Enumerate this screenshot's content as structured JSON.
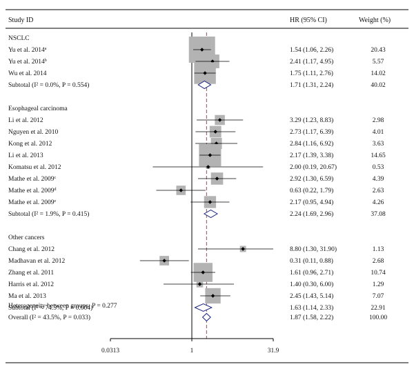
{
  "headers": {
    "study": "Study ID",
    "hr": "HR (95% CI)",
    "weight": "Weight (%)"
  },
  "axis_tick_labels": [
    "0.0313",
    "1",
    "31.9"
  ],
  "chart_data": {
    "type": "forest",
    "x_scale": "log",
    "x_range": [
      0.0313,
      31.9
    ],
    "reference_line": 1,
    "overall_line": 1.87,
    "groups": [
      {
        "name": "NSCLC",
        "studies": [
          {
            "label": "Yu et al. 2014",
            "sup": "a",
            "hr": 1.54,
            "lo": 1.06,
            "hi": 2.26,
            "ci_text": "1.54 (1.06, 2.26)",
            "weight": "20.43"
          },
          {
            "label": "Yu et al. 2014",
            "sup": "b",
            "hr": 2.41,
            "lo": 1.17,
            "hi": 4.95,
            "ci_text": "2.41 (1.17, 4.95)",
            "weight": "5.57"
          },
          {
            "label": "Wu et al. 2014",
            "sup": "",
            "hr": 1.75,
            "lo": 1.11,
            "hi": 2.76,
            "ci_text": "1.75 (1.11, 2.76)",
            "weight": "14.02"
          }
        ],
        "subtotal": {
          "label": "Subtotal (I² = 0.0%, P = 0.554)",
          "hr": 1.71,
          "lo": 1.31,
          "hi": 2.24,
          "ci_text": "1.71 (1.31, 2.24)",
          "weight": "40.02"
        }
      },
      {
        "name": "Esophageal carcinoma",
        "studies": [
          {
            "label": "Li et al. 2012",
            "sup": "",
            "hr": 3.29,
            "lo": 1.23,
            "hi": 8.83,
            "ci_text": "3.29 (1.23, 8.83)",
            "weight": "2.98"
          },
          {
            "label": "Nguyen et al. 2010",
            "sup": "",
            "hr": 2.73,
            "lo": 1.17,
            "hi": 6.39,
            "ci_text": "2.73 (1.17, 6.39)",
            "weight": "4.01"
          },
          {
            "label": "Kong et al. 2012",
            "sup": "",
            "hr": 2.84,
            "lo": 1.16,
            "hi": 6.92,
            "ci_text": "2.84 (1.16, 6.92)",
            "weight": "3.63"
          },
          {
            "label": "Li et al. 2013",
            "sup": "",
            "hr": 2.17,
            "lo": 1.39,
            "hi": 3.38,
            "ci_text": "2.17 (1.39, 3.38)",
            "weight": "14.65"
          },
          {
            "label": "Komatsu et al. 2012",
            "sup": "",
            "hr": 2.0,
            "lo": 0.19,
            "hi": 20.67,
            "ci_text": "2.00 (0.19, 20.67)",
            "weight": "0.53"
          },
          {
            "label": "Mathe et al. 2009",
            "sup": "c",
            "hr": 2.92,
            "lo": 1.3,
            "hi": 6.59,
            "ci_text": "2.92 (1.30, 6.59)",
            "weight": "4.39"
          },
          {
            "label": "Mathe et al. 2009",
            "sup": "d",
            "hr": 0.63,
            "lo": 0.22,
            "hi": 1.79,
            "ci_text": "0.63 (0.22, 1.79)",
            "weight": "2.63"
          },
          {
            "label": "Mathe et al. 2009",
            "sup": "e",
            "hr": 2.17,
            "lo": 0.95,
            "hi": 4.94,
            "ci_text": "2.17 (0.95, 4.94)",
            "weight": "4.26"
          }
        ],
        "subtotal": {
          "label": "Subtotal (I² = 1.9%, P = 0.415)",
          "hr": 2.24,
          "lo": 1.69,
          "hi": 2.96,
          "ci_text": "2.24 (1.69, 2.96)",
          "weight": "37.08"
        }
      },
      {
        "name": "Other cancers",
        "studies": [
          {
            "label": "Chang et al. 2012",
            "sup": "",
            "hr": 8.8,
            "lo": 1.3,
            "hi": 31.9,
            "ci_text": "8.80 (1.30, 31.90)",
            "weight": "1.13"
          },
          {
            "label": "Madhavan et al. 2012",
            "sup": "",
            "hr": 0.31,
            "lo": 0.11,
            "hi": 0.88,
            "ci_text": "0.31 (0.11, 0.88)",
            "weight": "2.68"
          },
          {
            "label": "Zhang et al. 2011",
            "sup": "",
            "hr": 1.61,
            "lo": 0.96,
            "hi": 2.71,
            "ci_text": "1.61 (0.96, 2.71)",
            "weight": "10.74"
          },
          {
            "label": "Harris et al. 2012",
            "sup": "",
            "hr": 1.4,
            "lo": 0.3,
            "hi": 6.0,
            "ci_text": "1.40 (0.30, 6.00)",
            "weight": "1.29"
          },
          {
            "label": "Ma et al. 2013",
            "sup": "",
            "hr": 2.45,
            "lo": 1.43,
            "hi": 5.14,
            "ci_text": "2.45 (1.43, 5.14)",
            "weight": "7.07"
          }
        ],
        "subtotal": {
          "label": "Subtotal (I² = 74.5%, P = 0.004)",
          "hr": 1.63,
          "lo": 1.14,
          "hi": 2.33,
          "ci_text": "1.63 (1.14, 2.33)",
          "weight": "22.91"
        }
      }
    ],
    "heterogeneity": "Heterogeneity between groups: P = 0.277",
    "overall": {
      "label": "Overall (I² = 43.5%, P = 0.033)",
      "hr": 1.87,
      "lo": 1.58,
      "hi": 2.22,
      "ci_text": "1.87 (1.58, 2.22)",
      "weight": "100.00"
    },
    "colors": {
      "box": "#b3b3b3",
      "diamond": "#1a237e",
      "overall_line": "#d2343c",
      "line": "#000000"
    }
  }
}
